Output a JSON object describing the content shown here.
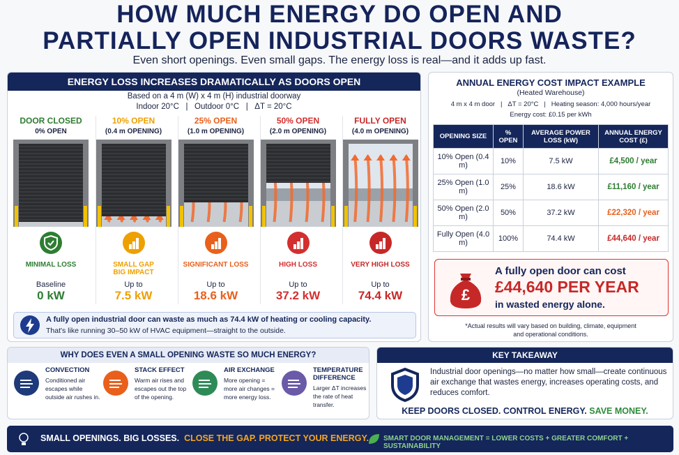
{
  "header": {
    "title_lines": [
      "HOW MUCH ENERGY DO OPEN AND",
      "PARTIALLY OPEN INDUSTRIAL DOORS WASTE?"
    ],
    "subtitle": "Even short openings. Even small gaps. The energy loss is real—and it adds up fast."
  },
  "energy_panel": {
    "heading": "ENERGY LOSS INCREASES DRAMATICALLY AS DOORS OPEN",
    "basis": "Based on a 4 m (W) x 4 m (H) industrial doorway",
    "conditions": "Indoor 20°C   |   Outdoor 0°C   |   ΔT = 20°C",
    "doors": [
      {
        "title": "DOOR CLOSED",
        "subtitle": "0% OPEN",
        "status": [
          "MINIMAL LOSS"
        ],
        "prefix": "Baseline",
        "value": "0 kW"
      },
      {
        "title": "10% OPEN",
        "subtitle": "(0.4 m OPENING)",
        "status": [
          "SMALL GAP",
          "BIG IMPACT"
        ],
        "prefix": "Up to",
        "value": "7.5 kW"
      },
      {
        "title": "25% OPEN",
        "subtitle": "(1.0 m OPENING)",
        "status": [
          "SIGNIFICANT LOSS"
        ],
        "prefix": "Up to",
        "value": "18.6 kW"
      },
      {
        "title": "50% OPEN",
        "subtitle": "(2.0 m OPENING)",
        "status": [
          "HIGH LOSS"
        ],
        "prefix": "Up to",
        "value": "37.2 kW"
      },
      {
        "title": "FULLY OPEN",
        "subtitle": "(4.0 m OPENING)",
        "status": [
          "VERY HIGH LOSS"
        ],
        "prefix": "Up to",
        "value": "74.4 kW"
      }
    ],
    "callout": [
      "A fully open industrial door can waste as much as 74.4 kW of heating or cooling capacity.",
      "That's like running 30–50 kW of HVAC equipment—straight to the outside."
    ]
  },
  "cost_panel": {
    "title": "ANNUAL ENERGY COST IMPACT EXAMPLE",
    "subtitle": "(Heated Warehouse)",
    "params": [
      "4 m x 4 m door   |   ΔT = 20°C   |   Heating season: 4,000 hours/year",
      "Energy cost: £0.15 per kWh"
    ],
    "table": {
      "headers": [
        "OPENING SIZE",
        "% OPEN",
        "AVERAGE POWER LOSS (kW)",
        "ANNUAL ENERGY COST (£)"
      ],
      "rows": [
        [
          "10% Open (0.4 m)",
          "10%",
          "7.5 kW",
          "£4,500 / year"
        ],
        [
          "25% Open (1.0 m)",
          "25%",
          "18.6 kW",
          "£11,160 / year"
        ],
        [
          "50% Open (2.0 m)",
          "50%",
          "37.2 kW",
          "£22,320 / year"
        ],
        [
          "Fully Open (4.0 m)",
          "100%",
          "74.4 kW",
          "£44,640 / year"
        ]
      ]
    },
    "highlight": [
      "A fully open door can cost",
      "£44,640 PER YEAR",
      "in wasted energy alone."
    ],
    "footnote": [
      "*Actual results will vary based on building, climate, equipment",
      "and operational conditions."
    ]
  },
  "why": {
    "heading": "WHY DOES EVEN A SMALL OPENING WASTE SO MUCH ENERGY?",
    "items": [
      {
        "title": "CONVECTION",
        "text": "Conditioned air escapes while outside air rushes in."
      },
      {
        "title": "STACK EFFECT",
        "text": "Warm air rises and escapes out the top of the opening."
      },
      {
        "title": "AIR EXCHANGE",
        "text": "More opening = more air changes = more energy loss."
      },
      {
        "title": "TEMPERATURE DIFFERENCE",
        "text": "Larger ΔT increases the rate of heat transfer."
      }
    ]
  },
  "takeaway": {
    "heading": "KEY TAKEAWAY",
    "text": "Industrial door openings—no matter how small—create continuous air exchange that wastes energy, increases operating costs, and reduces comfort.",
    "slogan": [
      "KEEP DOORS CLOSED. CONTROL ENERGY.",
      "SAVE MONEY."
    ]
  },
  "footer": {
    "left": "SMALL OPENINGS. BIG LOSSES.",
    "accent": "CLOSE THE GAP. PROTECT YOUR ENERGY.",
    "right": "SMART DOOR MANAGEMENT = LOWER COSTS + GREATER COMFORT + SUSTAINABILITY"
  }
}
